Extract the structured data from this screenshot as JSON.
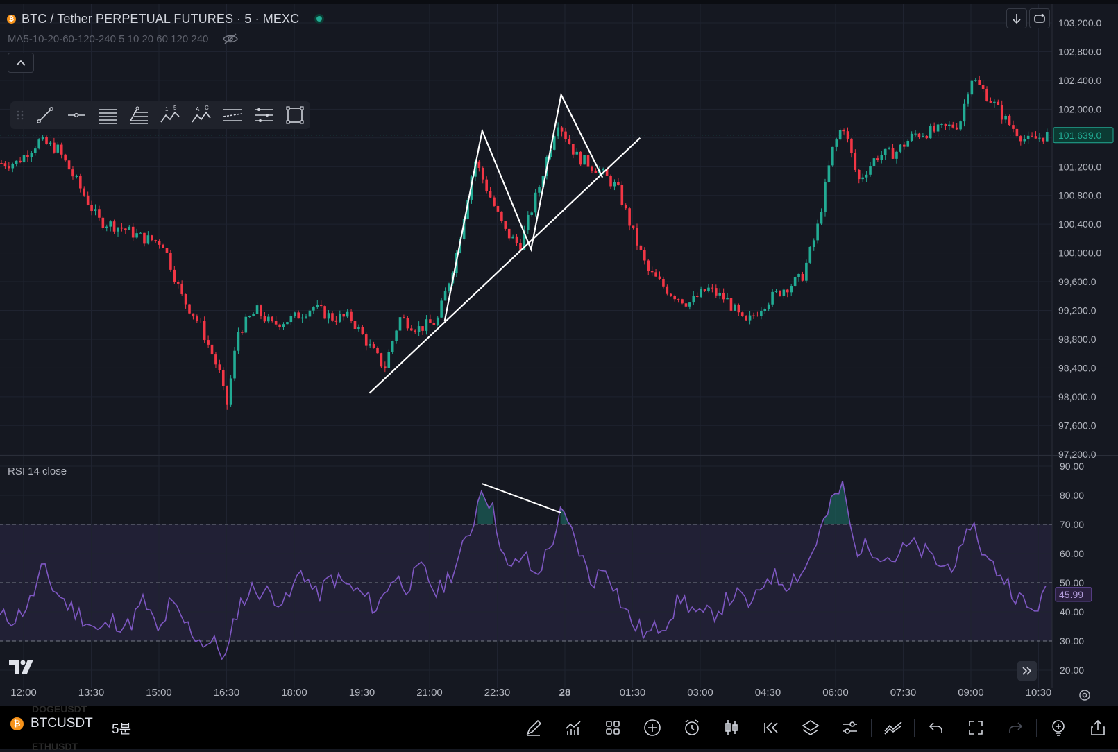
{
  "header": {
    "symbol_title": "BTC / Tether PERPETUAL FUTURES · 5 · MEXC",
    "coin_glyph": "₿",
    "ma_legend": "MA5-10-20-60-120-240 5 10 20 60 120 240"
  },
  "drawing_toolbar": {
    "tools": [
      "trend-line",
      "horizontal-ray",
      "parallel-channel",
      "fib-retracement",
      "xabcd-pattern",
      "abcd-pattern",
      "regression-trend",
      "long-position",
      "rectangle"
    ]
  },
  "rsi_panel": {
    "legend": "RSI 14 close",
    "current_value": "45.99"
  },
  "price_scale": {
    "labels": [
      "103,200.0",
      "102,800.0",
      "102,400.0",
      "102,000.0",
      "101,200.0",
      "100,800.0",
      "100,400.0",
      "100,000.0",
      "99,600.0",
      "99,200.0",
      "98,800.0",
      "98,400.0",
      "98,000.0",
      "97,600.0",
      "97,200.0"
    ],
    "current_price": "101,639.0"
  },
  "rsi_scale": {
    "labels": [
      "90.00",
      "80.00",
      "70.00",
      "60.00",
      "50.00",
      "40.00",
      "30.00",
      "20.00"
    ]
  },
  "time_axis": {
    "labels": [
      "12:00",
      "13:30",
      "15:00",
      "16:30",
      "18:00",
      "19:30",
      "21:00",
      "22:30",
      "28",
      "01:30",
      "03:00",
      "04:30",
      "06:00",
      "07:30",
      "09:00",
      "10:30"
    ]
  },
  "bottom_bar": {
    "ticker": "BTCUSDT",
    "interval": "5분",
    "ghost_ticker_above": "DOGEUSDT",
    "ghost_ticker_below": "ETHUSDT",
    "tools": [
      "brush-icon",
      "indicators-icon",
      "layout-icon",
      "add-icon",
      "alert-icon",
      "candle-style-icon",
      "replay-icon",
      "layers-icon",
      "settings-sliders-icon",
      "trend-tools-icon",
      "undo-icon",
      "fullscreen-icon",
      "redo-icon",
      "add-indicator-icon",
      "share-icon"
    ]
  },
  "colors": {
    "background": "#151821",
    "up_candle": "#22ab94",
    "down_candle": "#f23645",
    "rsi_line": "#7e57c2",
    "rsi_band": "#7e57c2",
    "drawing_lines": "#ffffff"
  },
  "chart_data": [
    {
      "type": "candlestick",
      "title": "BTC / Tether PERPETUAL FUTURES · 5 · MEXC",
      "x_ticks": [
        "12:00",
        "13:30",
        "15:00",
        "16:30",
        "18:00",
        "19:30",
        "21:00",
        "22:30",
        "28",
        "01:30",
        "03:00",
        "04:30",
        "06:00",
        "07:30",
        "09:00",
        "10:30"
      ],
      "ylim": [
        97100,
        103300
      ],
      "close_path": [
        [
          "11:50",
          101250
        ],
        [
          "12:20",
          101550
        ],
        [
          "12:45",
          101450
        ],
        [
          "13:10",
          101000
        ],
        [
          "13:40",
          100450
        ],
        [
          "14:10",
          100350
        ],
        [
          "14:40",
          100200
        ],
        [
          "15:05",
          100150
        ],
        [
          "15:30",
          99400
        ],
        [
          "15:55",
          99000
        ],
        [
          "16:20",
          98350
        ],
        [
          "16:30",
          97850
        ],
        [
          "16:45",
          98900
        ],
        [
          "17:10",
          99200
        ],
        [
          "17:30",
          99000
        ],
        [
          "18:00",
          99100
        ],
        [
          "18:25",
          99250
        ],
        [
          "18:50",
          99100
        ],
        [
          "19:15",
          99100
        ],
        [
          "19:40",
          98700
        ],
        [
          "20:00",
          98400
        ],
        [
          "20:20",
          99100
        ],
        [
          "20:45",
          98950
        ],
        [
          "21:10",
          99050
        ],
        [
          "21:35",
          99950
        ],
        [
          "22:00",
          101300
        ],
        [
          "22:20",
          100800
        ],
        [
          "22:40",
          100300
        ],
        [
          "23:00",
          100100
        ],
        [
          "23:25",
          100900
        ],
        [
          "23:50",
          101850
        ],
        [
          "00:15",
          101350
        ],
        [
          "00:45",
          101150
        ],
        [
          "01:10",
          100900
        ],
        [
          "01:30",
          100300
        ],
        [
          "01:50",
          99750
        ],
        [
          "02:20",
          99450
        ],
        [
          "02:45",
          99300
        ],
        [
          "03:10",
          99500
        ],
        [
          "03:35",
          99350
        ],
        [
          "04:00",
          99000
        ],
        [
          "04:25",
          99300
        ],
        [
          "04:50",
          99500
        ],
        [
          "05:15",
          99650
        ],
        [
          "05:35",
          100300
        ],
        [
          "05:55",
          101400
        ],
        [
          "06:10",
          101800
        ],
        [
          "06:30",
          101000
        ],
        [
          "06:55",
          101350
        ],
        [
          "07:20",
          101400
        ],
        [
          "07:45",
          101650
        ],
        [
          "08:15",
          101700
        ],
        [
          "08:45",
          101800
        ],
        [
          "09:00",
          102450
        ],
        [
          "09:25",
          102150
        ],
        [
          "09:50",
          101800
        ],
        [
          "10:15",
          101550
        ],
        [
          "10:40",
          101639
        ]
      ],
      "ylabels_shown": [
        "103,200.0",
        "102,800.0",
        "102,400.0",
        "102,000.0",
        "101,200.0",
        "100,800.0",
        "100,400.0",
        "100,000.0",
        "99,600.0",
        "99,200.0",
        "98,800.0",
        "98,400.0",
        "98,000.0",
        "97,600.0",
        "97,200.0"
      ],
      "last_price": 101639.0,
      "annotations": [
        {
          "type": "trend-line",
          "points": [
            [
              "19:40",
              98050
            ],
            [
              "01:40",
              101600
            ]
          ]
        },
        {
          "type": "zigzag-pattern",
          "points": [
            [
              "21:20",
              99050
            ],
            [
              "22:10",
              101700
            ],
            [
              "23:15",
              100050
            ],
            [
              "23:55",
              102200
            ],
            [
              "00:50",
              101050
            ]
          ]
        }
      ]
    },
    {
      "type": "line",
      "title": "RSI 14 close",
      "ylim": [
        17,
        92
      ],
      "yticks": [
        20,
        30,
        40,
        50,
        60,
        70,
        80,
        90
      ],
      "bands": {
        "upper": 70,
        "middle": 50,
        "lower": 30
      },
      "series": [
        {
          "values": [
            [
              "11:50",
              38
            ],
            [
              "12:10",
              44
            ],
            [
              "12:25",
              55
            ],
            [
              "12:40",
              48
            ],
            [
              "13:00",
              42
            ],
            [
              "13:20",
              38
            ],
            [
              "13:40",
              33
            ],
            [
              "14:00",
              37
            ],
            [
              "14:20",
              35
            ],
            [
              "14:40",
              44
            ],
            [
              "15:00",
              32
            ],
            [
              "15:15",
              43
            ],
            [
              "15:35",
              36
            ],
            [
              "15:55",
              30
            ],
            [
              "16:15",
              29
            ],
            [
              "16:30",
              24
            ],
            [
              "16:45",
              42
            ],
            [
              "17:05",
              48
            ],
            [
              "17:30",
              46
            ],
            [
              "17:50",
              43
            ],
            [
              "18:10",
              55
            ],
            [
              "18:30",
              45
            ],
            [
              "18:50",
              52
            ],
            [
              "19:10",
              49
            ],
            [
              "19:30",
              46
            ],
            [
              "19:50",
              41
            ],
            [
              "20:10",
              52
            ],
            [
              "20:30",
              49
            ],
            [
              "20:50",
              55
            ],
            [
              "21:10",
              46
            ],
            [
              "21:35",
              56
            ],
            [
              "21:55",
              68
            ],
            [
              "22:10",
              84
            ],
            [
              "22:25",
              74
            ],
            [
              "22:45",
              53
            ],
            [
              "23:05",
              60
            ],
            [
              "23:20",
              52
            ],
            [
              "23:40",
              62
            ],
            [
              "23:55",
              74
            ],
            [
              "00:15",
              64
            ],
            [
              "00:35",
              50
            ],
            [
              "00:55",
              56
            ],
            [
              "01:15",
              43
            ],
            [
              "01:30",
              36
            ],
            [
              "01:50",
              32
            ],
            [
              "02:15",
              37
            ],
            [
              "02:35",
              45
            ],
            [
              "03:00",
              38
            ],
            [
              "03:20",
              40
            ],
            [
              "03:45",
              46
            ],
            [
              "04:10",
              42
            ],
            [
              "04:30",
              53
            ],
            [
              "04:55",
              50
            ],
            [
              "05:20",
              55
            ],
            [
              "05:40",
              68
            ],
            [
              "06:00",
              80
            ],
            [
              "06:10",
              83
            ],
            [
              "06:25",
              62
            ],
            [
              "06:50",
              62
            ],
            [
              "07:15",
              58
            ],
            [
              "07:40",
              63
            ],
            [
              "08:00",
              60
            ],
            [
              "08:25",
              55
            ],
            [
              "08:50",
              60
            ],
            [
              "09:00",
              72
            ],
            [
              "09:20",
              58
            ],
            [
              "09:40",
              53
            ],
            [
              "10:00",
              46
            ],
            [
              "10:20",
              40
            ],
            [
              "10:40",
              45.99
            ]
          ]
        }
      ],
      "last_value": 45.99,
      "annotations": [
        {
          "type": "divergence-line",
          "points": [
            [
              "22:10",
              84
            ],
            [
              "23:55",
              74
            ]
          ]
        }
      ]
    }
  ]
}
